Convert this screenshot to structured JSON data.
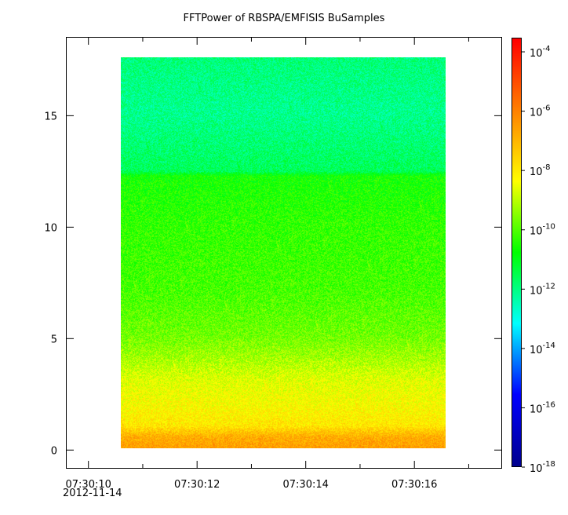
{
  "chart_data": {
    "type": "heatmap",
    "title": "FFTPower of RBSPA/EMFISIS  BuSamples",
    "x_axis": {
      "type": "time",
      "range_seconds": [
        "07:30:09.6",
        "07:30:17.6"
      ],
      "major_ticks": [
        "07:30:10",
        "07:30:12",
        "07:30:14",
        "07:30:16"
      ],
      "minor_tick_step_seconds": 1,
      "date_label": "2012-11-14",
      "data_extent": [
        "07:30:10.65",
        "07:30:16.6"
      ]
    },
    "y_axis": {
      "range": [
        -0.8,
        18.5
      ],
      "ticks": [
        0,
        5,
        10,
        15
      ],
      "tick_labels": [
        "0",
        "5",
        "10",
        "15"
      ],
      "data_extent": [
        0,
        17.5
      ]
    },
    "colorbar": {
      "scale": "log",
      "range": [
        1e-18,
        0.0003
      ],
      "ticks": [
        {
          "base": "10",
          "exp": "-18",
          "value": 1e-18
        },
        {
          "base": "10",
          "exp": "-16",
          "value": 1e-16
        },
        {
          "base": "10",
          "exp": "-14",
          "value": 1e-14
        },
        {
          "base": "10",
          "exp": "-12",
          "value": 1e-12
        },
        {
          "base": "10",
          "exp": "-10",
          "value": 1e-10
        },
        {
          "base": "10",
          "exp": "-8",
          "value": 1e-08
        },
        {
          "base": "10",
          "exp": "-6",
          "value": 1e-06
        },
        {
          "base": "10",
          "exp": "-4",
          "value": 0.0001
        }
      ],
      "colors": [
        "#00008f",
        "#0000ff",
        "#00ffff",
        "#00ff00",
        "#ffff00",
        "#ff8000",
        "#ff0000"
      ]
    },
    "power_profile": {
      "description_level_by_y": [
        {
          "y": 0.0,
          "log10_power": -6.5
        },
        {
          "y": 0.5,
          "log10_power": -6.8
        },
        {
          "y": 1.0,
          "log10_power": -7.9
        },
        {
          "y": 2.0,
          "log10_power": -8.3
        },
        {
          "y": 3.0,
          "log10_power": -8.6
        },
        {
          "y": 4.0,
          "log10_power": -9.2
        },
        {
          "y": 5.0,
          "log10_power": -9.7
        },
        {
          "y": 7.0,
          "log10_power": -10.1
        },
        {
          "y": 10.0,
          "log10_power": -10.3
        },
        {
          "y": 12.2,
          "log10_power": -10.6
        },
        {
          "y": 12.4,
          "log10_power": -11.6
        },
        {
          "y": 15.0,
          "log10_power": -12.1
        },
        {
          "y": 17.5,
          "log10_power": -11.9
        }
      ]
    }
  }
}
